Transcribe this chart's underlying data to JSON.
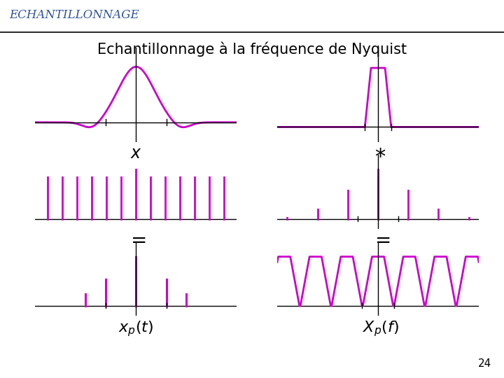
{
  "title": "Echantillonnage à la fréquence de Nyquist",
  "header": "ECHANTILLONNAGE",
  "magenta": "#CC00CC",
  "black": "#000000",
  "bg": "#FFFFFF",
  "page_num": "24"
}
